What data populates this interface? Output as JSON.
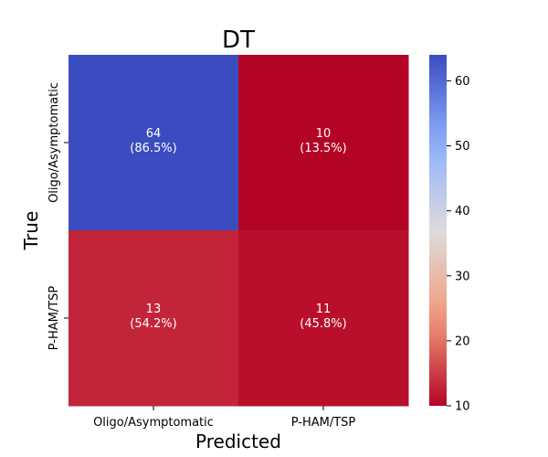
{
  "chart_data": {
    "type": "heatmap",
    "title": "DT",
    "xlabel": "Predicted",
    "ylabel": "True",
    "x_categories": [
      "Oligo/Asymptomatic",
      "P-HAM/TSP"
    ],
    "y_categories": [
      "Oligo/Asymptomatic",
      "P-HAM/TSP"
    ],
    "values": [
      [
        64,
        10
      ],
      [
        13,
        11
      ]
    ],
    "cell_labels": [
      [
        "64\n(86.5%)",
        "10\n(13.5%)"
      ],
      [
        "13\n(54.2%)",
        "11\n(45.8%)"
      ]
    ],
    "colormap": "coolwarm_r",
    "colorbar": {
      "min": 10,
      "max": 64,
      "ticks": [
        10,
        20,
        30,
        40,
        50,
        60
      ]
    }
  }
}
